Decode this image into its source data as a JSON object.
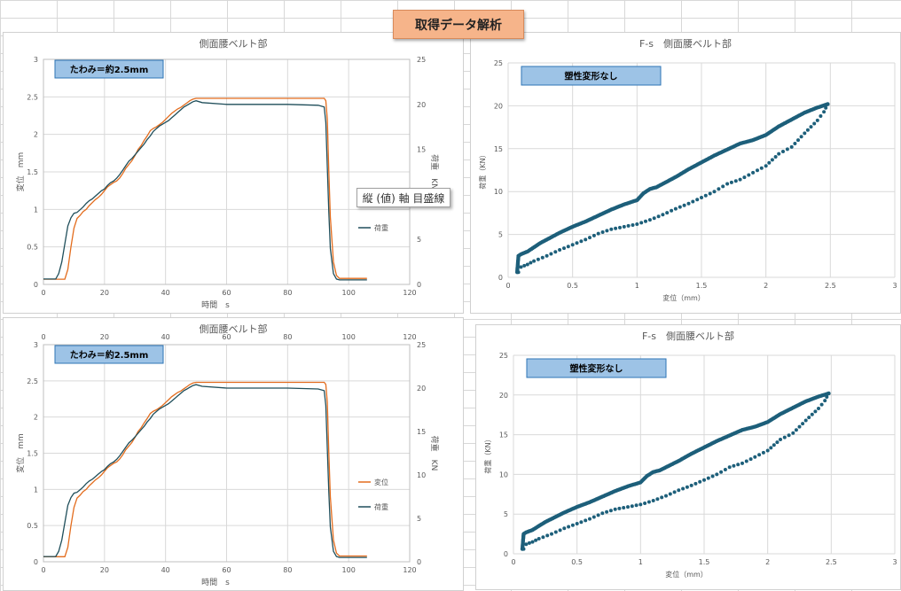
{
  "banner": {
    "title": "取得データ解析"
  },
  "tooltip": {
    "text": "縦 (値) 軸 目盛線"
  },
  "colors": {
    "displacement": "#e36c1d",
    "load": "#1f4e5a",
    "scatter": "#1d5f7a",
    "box_fill": "#9dc3e6",
    "box_border": "#2e75b6",
    "grid": "#d9d9d9"
  },
  "chart_data": [
    {
      "id": "ts1",
      "type": "line",
      "title": "側面腰ベルト部",
      "annotation": "たわみ＝約2.5mm",
      "xlabel": "時間　s",
      "ylabel": "変位　mm",
      "y2label": "荷重　KN",
      "xlim": [
        0,
        120
      ],
      "ylim": [
        0,
        3
      ],
      "y2lim": [
        0,
        25
      ],
      "xticks": [
        "0",
        "20",
        "40",
        "60",
        "80",
        "100",
        "120"
      ],
      "yticks": [
        "0",
        "0.5",
        "1",
        "1.5",
        "2",
        "2.5",
        "3"
      ],
      "y2ticks": [
        "0",
        "5",
        "10",
        "15",
        "20",
        "25"
      ],
      "legend": [
        "荷重"
      ],
      "series": [
        {
          "name": "変位",
          "axis": "left",
          "x": [
            0,
            7,
            8,
            9,
            10,
            11,
            12,
            13,
            14,
            15,
            16,
            17,
            18,
            19,
            20,
            21,
            22,
            23,
            24,
            25,
            26,
            27,
            28,
            29,
            30,
            31,
            32,
            33,
            34,
            35,
            36,
            37,
            38,
            39,
            40,
            41,
            42,
            43,
            44,
            45,
            46,
            47,
            48,
            49,
            50,
            92,
            92.5,
            93,
            93.5,
            94,
            95,
            96,
            97,
            106
          ],
          "y": [
            0.07,
            0.07,
            0.2,
            0.5,
            0.75,
            0.88,
            0.92,
            0.97,
            1.0,
            1.05,
            1.09,
            1.13,
            1.16,
            1.2,
            1.25,
            1.3,
            1.33,
            1.36,
            1.38,
            1.42,
            1.48,
            1.55,
            1.6,
            1.65,
            1.72,
            1.8,
            1.85,
            1.92,
            1.98,
            2.05,
            2.08,
            2.1,
            2.13,
            2.16,
            2.2,
            2.24,
            2.28,
            2.31,
            2.34,
            2.36,
            2.39,
            2.42,
            2.45,
            2.47,
            2.48,
            2.48,
            2.45,
            2.2,
            1.5,
            0.9,
            0.3,
            0.12,
            0.08,
            0.08
          ]
        },
        {
          "name": "荷重",
          "axis": "right",
          "x": [
            0,
            4,
            5,
            6,
            7,
            8,
            9,
            10,
            11,
            12,
            13,
            14,
            15,
            16,
            17,
            18,
            19,
            20,
            21,
            22,
            23,
            24,
            25,
            26,
            27,
            28,
            29,
            30,
            31,
            32,
            33,
            34,
            35,
            36,
            37,
            38,
            39,
            40,
            41,
            42,
            43,
            44,
            45,
            46,
            47,
            48,
            49,
            50,
            52,
            60,
            80,
            90,
            92,
            92.5,
            93,
            93.5,
            94,
            95,
            96,
            97,
            106
          ],
          "y": [
            0.6,
            0.6,
            1.2,
            2.5,
            4.5,
            6.5,
            7.4,
            7.9,
            8.0,
            8.3,
            8.6,
            9.0,
            9.3,
            9.5,
            9.8,
            10.1,
            10.4,
            10.6,
            11.0,
            11.3,
            11.5,
            11.8,
            12.2,
            12.7,
            13.2,
            13.7,
            14.0,
            14.4,
            14.8,
            15.2,
            15.6,
            16.1,
            16.5,
            17.0,
            17.3,
            17.6,
            17.8,
            18.0,
            18.2,
            18.5,
            18.8,
            19.1,
            19.4,
            19.7,
            19.9,
            20.1,
            20.3,
            20.4,
            20.2,
            20.0,
            20.0,
            19.9,
            19.7,
            18.0,
            13.0,
            8.0,
            4.0,
            1.2,
            0.6,
            0.5,
            0.5
          ]
        }
      ]
    },
    {
      "id": "fs1",
      "type": "scatter",
      "title": "F-s　側面腰ベルト部",
      "annotation": "塑性変形なし",
      "xlabel": "変位（mm）",
      "ylabel": "荷重（KN）",
      "xlim": [
        0,
        3
      ],
      "ylim": [
        0,
        25
      ],
      "xticks": [
        "0",
        "0.5",
        "1",
        "1.5",
        "2",
        "2.5",
        "3"
      ],
      "yticks": [
        "0",
        "5",
        "10",
        "15",
        "20",
        "25"
      ],
      "loading": {
        "x": [
          0.07,
          0.08,
          0.1,
          0.15,
          0.2,
          0.25,
          0.3,
          0.35,
          0.4,
          0.5,
          0.6,
          0.7,
          0.8,
          0.9,
          1.0,
          1.05,
          1.1,
          1.15,
          1.2,
          1.3,
          1.4,
          1.5,
          1.6,
          1.7,
          1.8,
          1.9,
          2.0,
          2.1,
          2.2,
          2.3,
          2.4,
          2.48
        ],
        "y": [
          0.6,
          2.5,
          2.7,
          3.0,
          3.5,
          4.0,
          4.4,
          4.8,
          5.2,
          5.9,
          6.5,
          7.2,
          7.9,
          8.5,
          9.0,
          9.8,
          10.3,
          10.5,
          10.9,
          11.7,
          12.6,
          13.4,
          14.2,
          14.9,
          15.6,
          16.0,
          16.6,
          17.6,
          18.4,
          19.2,
          19.8,
          20.2
        ]
      },
      "unloading": {
        "x": [
          2.48,
          2.45,
          2.4,
          2.3,
          2.2,
          2.1,
          2.0,
          1.9,
          1.8,
          1.7,
          1.6,
          1.5,
          1.4,
          1.3,
          1.2,
          1.1,
          1.0,
          0.9,
          0.8,
          0.7,
          0.6,
          0.5,
          0.4,
          0.3,
          0.2,
          0.15,
          0.1,
          0.08
        ],
        "y": [
          20.2,
          19.3,
          18.3,
          16.8,
          15.2,
          14.4,
          13.0,
          12.2,
          11.4,
          10.9,
          10.0,
          9.3,
          8.6,
          8.0,
          7.3,
          6.7,
          6.2,
          5.9,
          5.6,
          5.1,
          4.4,
          3.8,
          3.2,
          2.5,
          1.9,
          1.5,
          1.2,
          0.6
        ]
      }
    },
    {
      "id": "ts2",
      "type": "line",
      "title": "側面腰ベルト部",
      "annotation": "たわみ＝約2.5mm",
      "xlabel": "時間　s",
      "ylabel": "変位　mm",
      "y2label": "荷重　KN",
      "xlim": [
        0,
        120
      ],
      "ylim": [
        0,
        3
      ],
      "y2lim": [
        0,
        25
      ],
      "xticks": [
        "0",
        "20",
        "40",
        "60",
        "80",
        "100",
        "120"
      ],
      "yticks": [
        "0",
        "0.5",
        "1",
        "1.5",
        "2",
        "2.5",
        "3"
      ],
      "y2ticks": [
        "0",
        "5",
        "10",
        "15",
        "20",
        "25"
      ],
      "legend": [
        "変位",
        "荷重"
      ]
    },
    {
      "id": "fs2",
      "type": "scatter",
      "title": "F-s　側面腰ベルト部",
      "annotation": "塑性変形なし",
      "xlabel": "変位（mm）",
      "ylabel": "荷重（KN）",
      "xlim": [
        0,
        3
      ],
      "ylim": [
        0,
        25
      ],
      "xticks": [
        "0",
        "0.5",
        "1",
        "1.5",
        "2",
        "2.5",
        "3"
      ],
      "yticks": [
        "0",
        "5",
        "10",
        "15",
        "20",
        "25"
      ]
    }
  ]
}
